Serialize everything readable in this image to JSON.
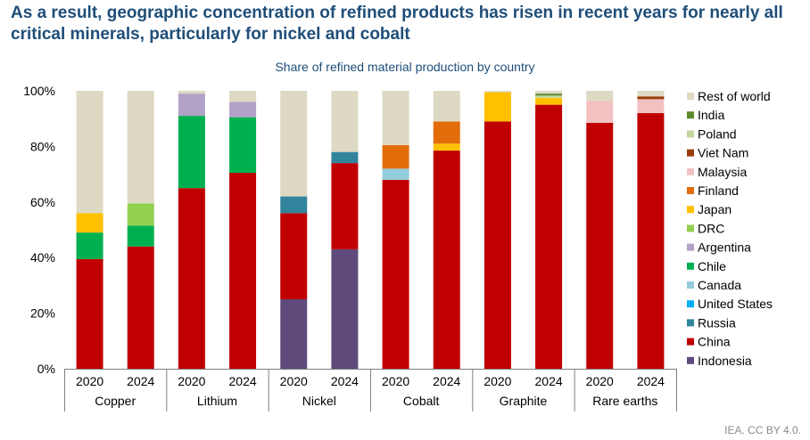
{
  "headline": "As a result, geographic concentration of refined products has risen in recent years for nearly all critical minerals, particularly for nickel and cobalt",
  "credit": "IEA. CC BY 4.0.",
  "colors": {
    "Rest of world": "#ddd9c3",
    "India": "#5e8a2e",
    "Poland": "#c3d69b",
    "Viet Nam": "#9c3c0c",
    "Malaysia": "#f2c2c2",
    "Finland": "#e36c0a",
    "Japan": "#ffc000",
    "DRC": "#92d050",
    "Argentina": "#b3a2c7",
    "Chile": "#00b050",
    "Canada": "#93cddd",
    "United States": "#00b0f0",
    "Russia": "#31849b",
    "China": "#c00000",
    "Indonesia": "#604a7b"
  },
  "chart_data": {
    "type": "bar",
    "stacked": true,
    "title": "Share of refined material production by country",
    "xlabel": "",
    "ylabel": "",
    "ylim": [
      0,
      100
    ],
    "yticks": [
      "0%",
      "20%",
      "40%",
      "60%",
      "80%",
      "100%"
    ],
    "legend_position": "right",
    "legend_order": [
      "Rest of world",
      "India",
      "Poland",
      "Viet Nam",
      "Malaysia",
      "Finland",
      "Japan",
      "DRC",
      "Argentina",
      "Chile",
      "Canada",
      "United States",
      "Russia",
      "China",
      "Indonesia"
    ],
    "groups": [
      "Copper",
      "Lithium",
      "Nickel",
      "Cobalt",
      "Graphite",
      "Rare earths"
    ],
    "years": [
      "2020",
      "2024"
    ],
    "categories": [
      {
        "group": "Copper",
        "year": "2020"
      },
      {
        "group": "Copper",
        "year": "2024"
      },
      {
        "group": "Lithium",
        "year": "2020"
      },
      {
        "group": "Lithium",
        "year": "2024"
      },
      {
        "group": "Nickel",
        "year": "2020"
      },
      {
        "group": "Nickel",
        "year": "2024"
      },
      {
        "group": "Cobalt",
        "year": "2020"
      },
      {
        "group": "Cobalt",
        "year": "2024"
      },
      {
        "group": "Graphite",
        "year": "2020"
      },
      {
        "group": "Graphite",
        "year": "2024"
      },
      {
        "group": "Rare earths",
        "year": "2020"
      },
      {
        "group": "Rare earths",
        "year": "2024"
      }
    ],
    "series": [
      {
        "name": "Indonesia",
        "values": [
          0,
          0,
          0,
          0,
          25,
          43,
          0,
          0,
          0,
          0,
          0,
          0
        ]
      },
      {
        "name": "China",
        "values": [
          39.5,
          44,
          65,
          70.5,
          31,
          31,
          68,
          78.5,
          89,
          95,
          88.5,
          92
        ]
      },
      {
        "name": "Russia",
        "values": [
          0,
          0,
          0,
          0,
          6,
          4,
          0,
          0,
          0,
          0,
          0,
          0
        ]
      },
      {
        "name": "United States",
        "values": [
          0,
          0,
          0,
          0,
          0,
          0,
          0,
          0,
          0,
          0,
          0,
          0
        ]
      },
      {
        "name": "Canada",
        "values": [
          0,
          0,
          0,
          0,
          0,
          0,
          4,
          0,
          0,
          0,
          0,
          0
        ]
      },
      {
        "name": "Chile",
        "values": [
          9.5,
          7.5,
          26,
          20,
          0,
          0,
          0,
          0,
          0,
          0,
          0,
          0
        ]
      },
      {
        "name": "Argentina",
        "values": [
          0,
          0,
          8,
          5.5,
          0,
          0,
          0,
          0,
          0,
          0,
          0,
          0
        ]
      },
      {
        "name": "DRC",
        "values": [
          0,
          8,
          0,
          0,
          0,
          0,
          0,
          0,
          0,
          0,
          0,
          0
        ]
      },
      {
        "name": "Japan",
        "values": [
          7,
          0,
          0,
          0,
          0,
          0,
          0,
          2.5,
          10.5,
          2.5,
          0,
          0
        ]
      },
      {
        "name": "Finland",
        "values": [
          0,
          0,
          0,
          0,
          0,
          0,
          8.5,
          8,
          0,
          0,
          0,
          0
        ]
      },
      {
        "name": "Malaysia",
        "values": [
          0,
          0,
          0,
          0,
          0,
          0,
          0,
          0,
          0,
          0,
          8,
          5
        ]
      },
      {
        "name": "Viet Nam",
        "values": [
          0,
          0,
          0,
          0,
          0,
          0,
          0,
          0,
          0,
          0,
          0,
          1
        ]
      },
      {
        "name": "Poland",
        "values": [
          0,
          0,
          0,
          0,
          0,
          0,
          0,
          0,
          0,
          0.8,
          0,
          0
        ]
      },
      {
        "name": "India",
        "values": [
          0,
          0,
          0,
          0,
          0,
          0,
          0,
          0,
          0,
          0.7,
          0,
          0
        ]
      },
      {
        "name": "Rest of world",
        "values": [
          44,
          40.5,
          1,
          4,
          38,
          22,
          19.5,
          11,
          0.5,
          1,
          3.5,
          2
        ]
      }
    ]
  }
}
